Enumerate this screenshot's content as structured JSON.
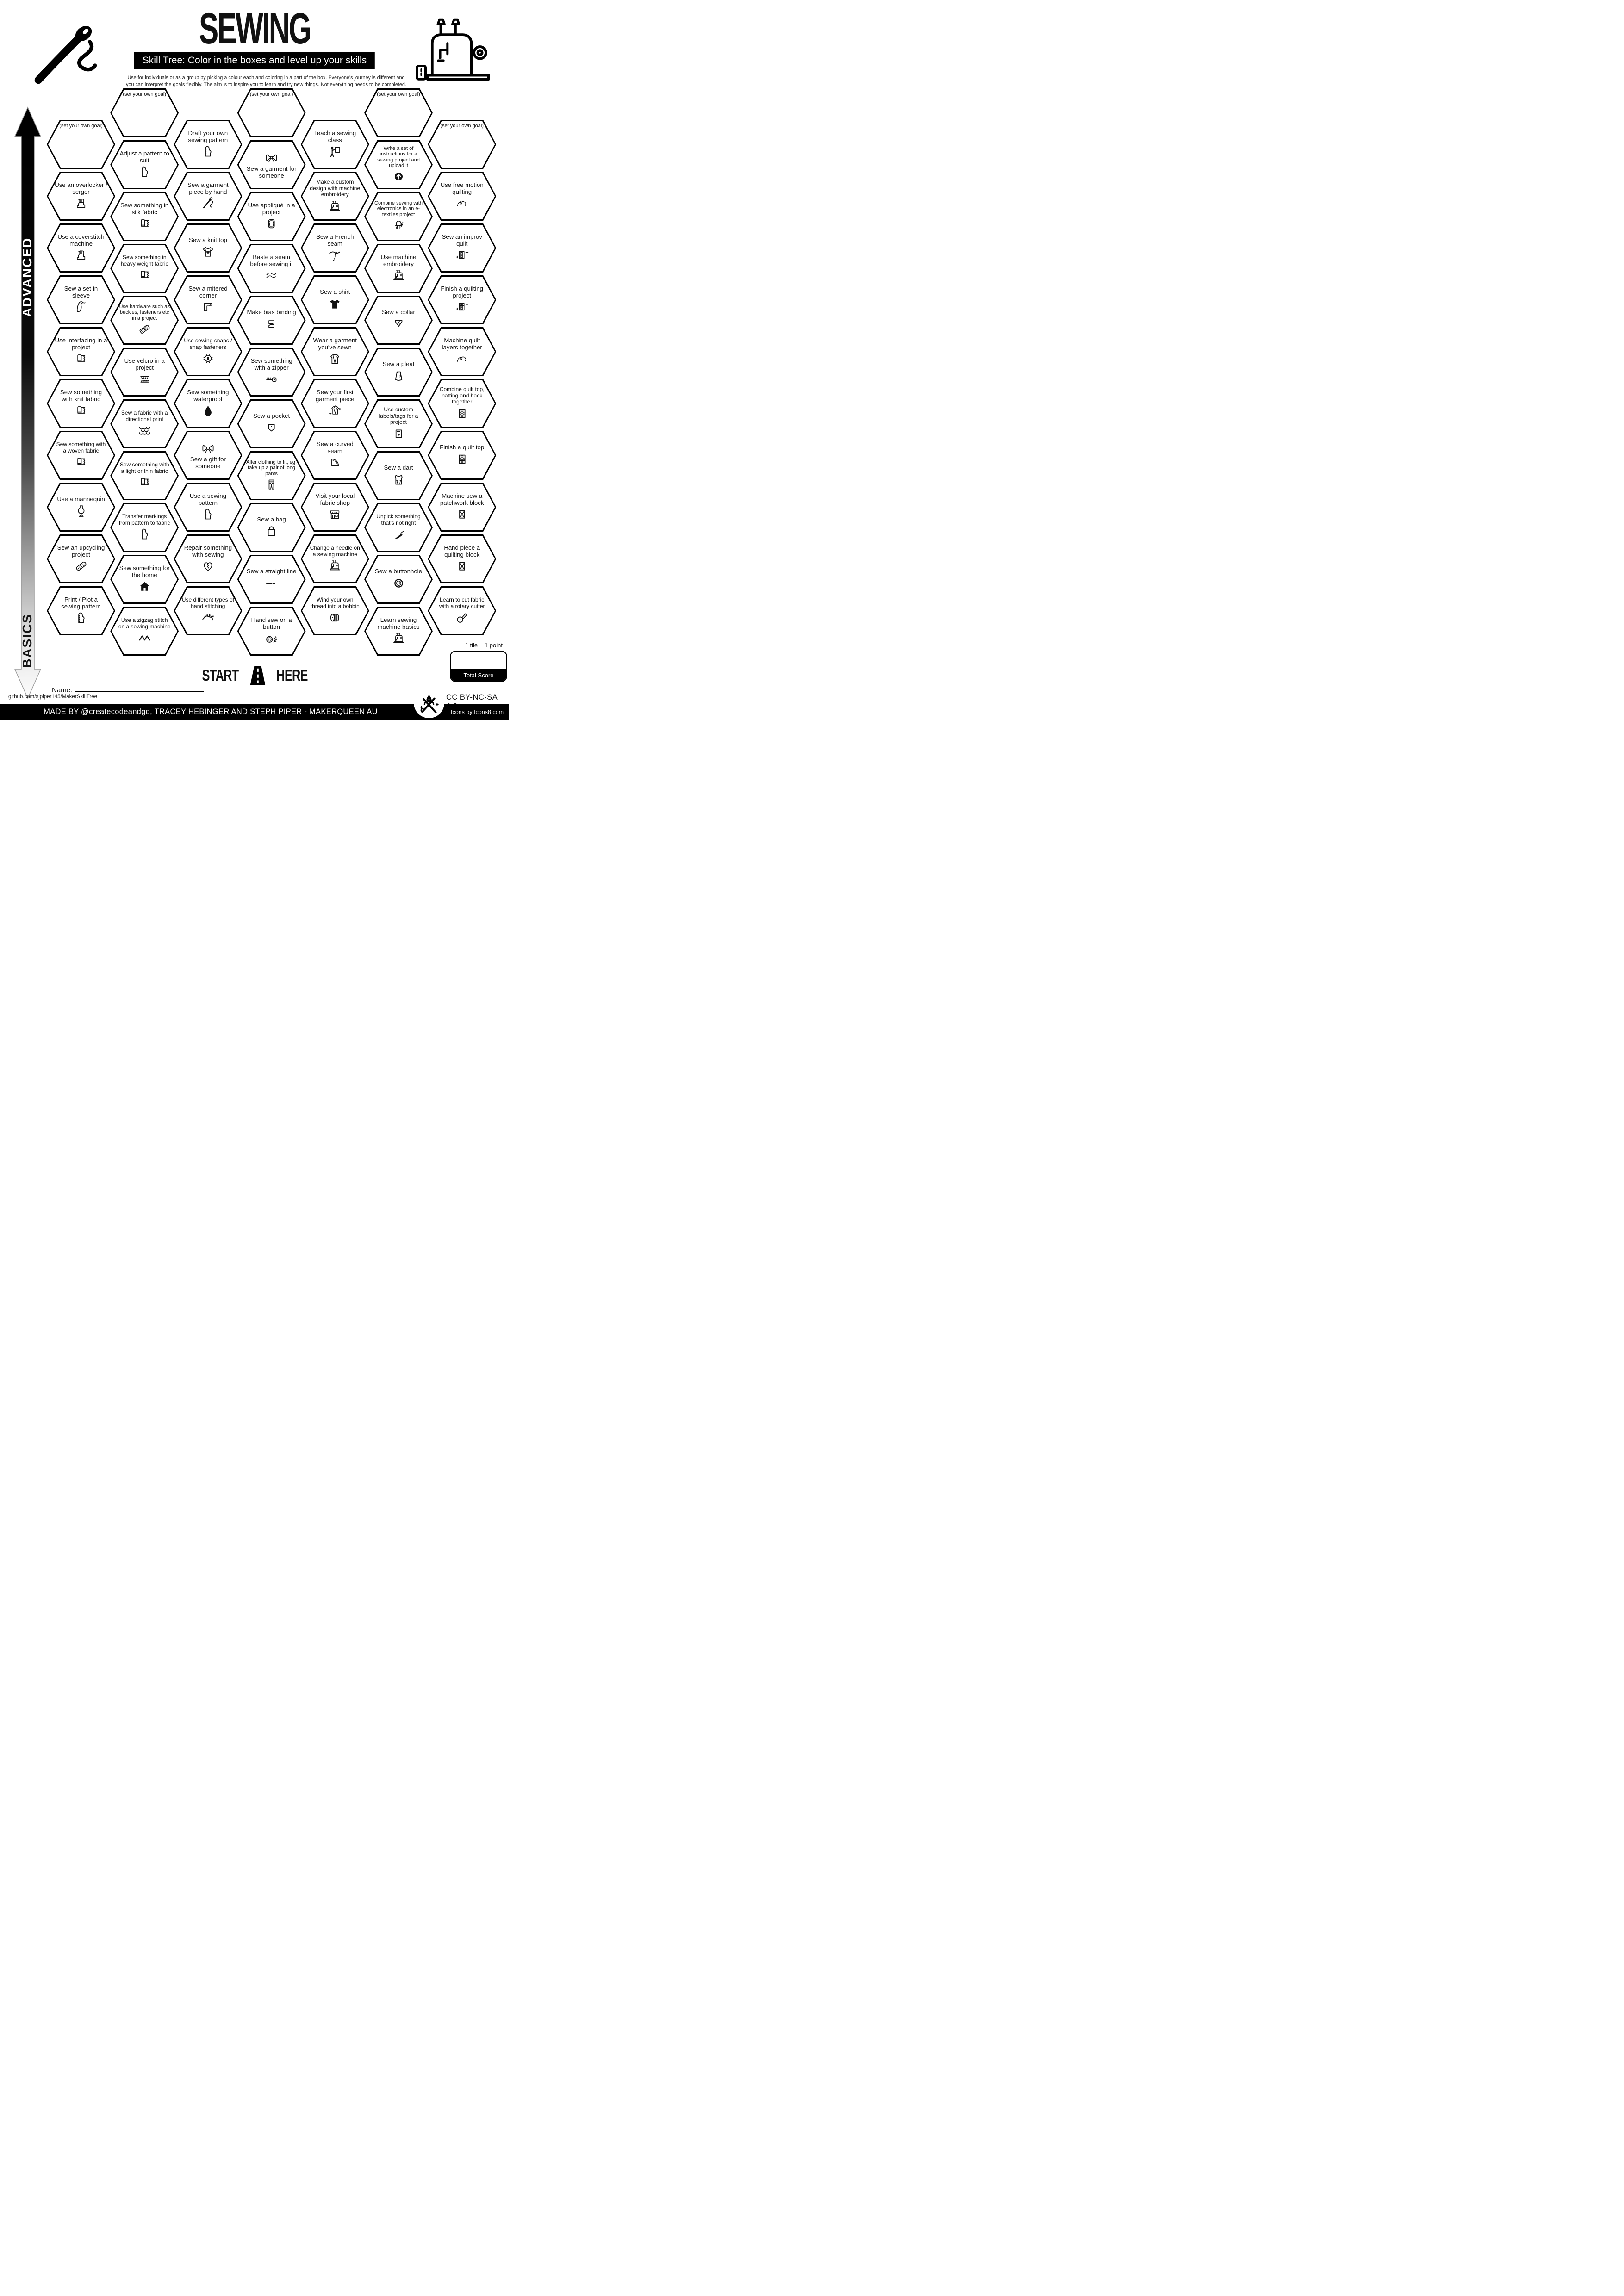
{
  "header": {
    "title": "SEWING",
    "banner": "Skill Tree:  Color in the boxes and level up your skills",
    "description": "Use for individuals or as a group by picking a colour each and coloring in a part of the box.  Everyone's journey is different and you can interpret the goals flexibly.  The aim is to inspire you to learn and try new things. Not everything needs to be completed.",
    "needle_icon": "needle-and-thread-icon",
    "machine_icon": "sewing-machine-icon"
  },
  "axis": {
    "top_label": "ADVANCED",
    "bottom_label": "BASICS"
  },
  "colors": {
    "ink": "#111111",
    "accent": "#000000",
    "paper": "#ffffff"
  },
  "goal_label": "(set your own goal)",
  "hexes": [
    {
      "col": 0,
      "row": 0,
      "goal": true,
      "label": "(set your own goal)",
      "icon": ""
    },
    {
      "col": 0,
      "row": 1,
      "label": "Use an overlocker / serger",
      "icon": "serger"
    },
    {
      "col": 0,
      "row": 2,
      "label": "Use a coverstitch machine",
      "icon": "serger"
    },
    {
      "col": 0,
      "row": 3,
      "label": "Sew a set-in sleeve",
      "icon": "sleeve"
    },
    {
      "col": 0,
      "row": 4,
      "label": "Use interfacing in a project",
      "icon": "fabric"
    },
    {
      "col": 0,
      "row": 5,
      "label": "Sew something with knit fabric",
      "icon": "fabric"
    },
    {
      "col": 0,
      "row": 6,
      "label": "Sew something with a woven fabric",
      "icon": "fabric"
    },
    {
      "col": 0,
      "row": 7,
      "label": "Use a mannequin",
      "icon": "mannequin"
    },
    {
      "col": 0,
      "row": 8,
      "label": "Sew an upcycling project",
      "icon": "bandage"
    },
    {
      "col": 0,
      "row": 9,
      "label": "Print / Plot a sewing pattern",
      "icon": "pattern"
    },
    {
      "col": 1,
      "row": 0,
      "goal": true,
      "label": "(set your own goal)",
      "icon": ""
    },
    {
      "col": 1,
      "row": 1,
      "label": "Adjust a pattern to suit",
      "icon": "pattern"
    },
    {
      "col": 1,
      "row": 2,
      "label": "Sew something in silk fabric",
      "icon": "fabric"
    },
    {
      "col": 1,
      "row": 3,
      "label": "Sew something in heavy weight fabric",
      "icon": "fabric"
    },
    {
      "col": 1,
      "row": 4,
      "label": "Use hardware such as buckles, fasteners etc in a project",
      "icon": "buckle"
    },
    {
      "col": 1,
      "row": 5,
      "label": "Use velcro in a project",
      "icon": "velcro"
    },
    {
      "col": 1,
      "row": 6,
      "label": "Sew a fabric with a directional print",
      "icon": "scales"
    },
    {
      "col": 1,
      "row": 7,
      "label": "Sew something with a light or thin fabric",
      "icon": "fabric"
    },
    {
      "col": 1,
      "row": 8,
      "label": "Transfer markings from pattern to fabric",
      "icon": "pattern"
    },
    {
      "col": 1,
      "row": 9,
      "label": "Sew something for the home",
      "icon": "house"
    },
    {
      "col": 1,
      "row": 10,
      "label": "Use a zigzag stitch on a sewing machine",
      "icon": "zigzag"
    },
    {
      "col": 2,
      "row": 0,
      "label": "Draft your own sewing pattern",
      "icon": "pattern"
    },
    {
      "col": 2,
      "row": 1,
      "label": "Sew a garment piece by hand",
      "icon": "needle"
    },
    {
      "col": 2,
      "row": 2,
      "label": "Sew a knit top",
      "icon": "tshirt-heart"
    },
    {
      "col": 2,
      "row": 3,
      "label": "Sew a mitered corner",
      "icon": "corner"
    },
    {
      "col": 2,
      "row": 4,
      "label": "Use sewing snaps / snap fasteners",
      "icon": "snap"
    },
    {
      "col": 2,
      "row": 5,
      "label": "Sew something waterproof",
      "icon": "droplet"
    },
    {
      "col": 2,
      "row": 6,
      "label": "Sew a gift for someone",
      "icon": "bow",
      "icon_pos": "top"
    },
    {
      "col": 2,
      "row": 7,
      "label": "Use a sewing pattern",
      "icon": "pattern"
    },
    {
      "col": 2,
      "row": 8,
      "label": "Repair something with sewing",
      "icon": "heart-mend"
    },
    {
      "col": 2,
      "row": 9,
      "label": "Use different types of hand stitching",
      "icon": "hand-stitch"
    },
    {
      "col": 3,
      "row": 0,
      "goal": true,
      "label": "(set your own goal)",
      "icon": ""
    },
    {
      "col": 3,
      "row": 1,
      "label": "Sew a garment for someone",
      "icon": "bow",
      "icon_pos": "top"
    },
    {
      "col": 3,
      "row": 2,
      "label": "Use appliqué in a project",
      "icon": "applique"
    },
    {
      "col": 3,
      "row": 3,
      "label": "Baste a seam before sewing it",
      "icon": "baste"
    },
    {
      "col": 3,
      "row": 4,
      "label": "Make bias binding",
      "icon": "bias"
    },
    {
      "col": 3,
      "row": 5,
      "label": "Sew something with a zipper",
      "icon": "zipper"
    },
    {
      "col": 3,
      "row": 6,
      "label": "Sew a pocket",
      "icon": "pocket"
    },
    {
      "col": 3,
      "row": 7,
      "label": "Alter clothing to fit, eg. take up a pair of long pants",
      "icon": "pants"
    },
    {
      "col": 3,
      "row": 8,
      "label": "Sew a bag",
      "icon": "bag"
    },
    {
      "col": 3,
      "row": 9,
      "label": "Sew a straight line",
      "icon": "dashes"
    },
    {
      "col": 3,
      "row": 10,
      "label": "Hand sew on a button",
      "icon": "button-confetti"
    },
    {
      "col": 4,
      "row": 0,
      "label": "Teach a sewing class",
      "icon": "teacher"
    },
    {
      "col": 4,
      "row": 1,
      "label": "Make a custom design with machine embroidery",
      "icon": "machine"
    },
    {
      "col": 4,
      "row": 2,
      "label": "Sew a French seam",
      "icon": "french"
    },
    {
      "col": 4,
      "row": 3,
      "label": "Sew a shirt",
      "icon": "tshirt"
    },
    {
      "col": 4,
      "row": 4,
      "label": "Wear a garment you've sewn",
      "icon": "jacket"
    },
    {
      "col": 4,
      "row": 5,
      "label": "Sew your first garment piece",
      "icon": "jacket-sparkle"
    },
    {
      "col": 4,
      "row": 6,
      "label": "Sew a curved seam",
      "icon": "curved"
    },
    {
      "col": 4,
      "row": 7,
      "label": "Visit your local fabric shop",
      "icon": "shop"
    },
    {
      "col": 4,
      "row": 8,
      "label": "Change a needle on a sewing machine",
      "icon": "machine"
    },
    {
      "col": 4,
      "row": 9,
      "label": "Wind your own thread into a bobbin",
      "icon": "bobbin"
    },
    {
      "col": 5,
      "row": 0,
      "goal": true,
      "label": "(set your own goal)",
      "icon": ""
    },
    {
      "col": 5,
      "row": 1,
      "label": "Write a set of instructions for a sewing project and upload it",
      "icon": "upload"
    },
    {
      "col": 5,
      "row": 2,
      "label": "Combine sewing with electronics in an e-textiles project",
      "icon": "led"
    },
    {
      "col": 5,
      "row": 3,
      "label": "Use machine embroidery",
      "icon": "machine"
    },
    {
      "col": 5,
      "row": 4,
      "label": "Sew a collar",
      "icon": "collar"
    },
    {
      "col": 5,
      "row": 5,
      "label": "Sew a pleat",
      "icon": "skirt"
    },
    {
      "col": 5,
      "row": 6,
      "label": "Use custom labels/tags for a project",
      "icon": "tag"
    },
    {
      "col": 5,
      "row": 7,
      "label": "Sew a dart",
      "icon": "dart"
    },
    {
      "col": 5,
      "row": 8,
      "label": "Unpick something that's not right",
      "icon": "ripper"
    },
    {
      "col": 5,
      "row": 9,
      "label": "Sew a buttonhole",
      "icon": "button"
    },
    {
      "col": 5,
      "row": 10,
      "label": "Learn sewing machine basics",
      "icon": "machine"
    },
    {
      "col": 6,
      "row": 0,
      "goal": true,
      "label": "(set your own goal)",
      "icon": ""
    },
    {
      "col": 6,
      "row": 1,
      "label": "Use free motion quilting",
      "icon": "freemotion"
    },
    {
      "col": 6,
      "row": 2,
      "label": "Sew an improv quilt",
      "icon": "quilt-sparkle"
    },
    {
      "col": 6,
      "row": 3,
      "label": "Finish a quilting project",
      "icon": "quilt-sparkle"
    },
    {
      "col": 6,
      "row": 4,
      "label": "Machine quilt layers together",
      "icon": "freemotion"
    },
    {
      "col": 6,
      "row": 5,
      "label": "Combine quilt top, batting and back together",
      "icon": "quilt"
    },
    {
      "col": 6,
      "row": 6,
      "label": "Finish a quilt top",
      "icon": "quilt"
    },
    {
      "col": 6,
      "row": 7,
      "label": "Machine sew a patchwork block",
      "icon": "patch-x"
    },
    {
      "col": 6,
      "row": 8,
      "label": "Hand piece a quilting block",
      "icon": "patch-x"
    },
    {
      "col": 6,
      "row": 9,
      "label": "Learn to cut fabric with a rotary cutter",
      "icon": "rotary"
    }
  ],
  "footer": {
    "start_label_left": "START",
    "start_label_right": "HERE",
    "road_icon": "road-icon",
    "name_label": "Name:",
    "github": "github.com/sjpiper145/MakerSkillTree",
    "tile_points": "1 tile = 1 point",
    "total_score": "Total Score",
    "license": "CC BY-NC-SA 4.0",
    "credits": "MADE BY @createcodeandgo, TRACEY HEBINGER  AND STEPH PIPER  -  MAKERQUEEN AU",
    "icons_credit": "Icons by Icons8.com"
  }
}
